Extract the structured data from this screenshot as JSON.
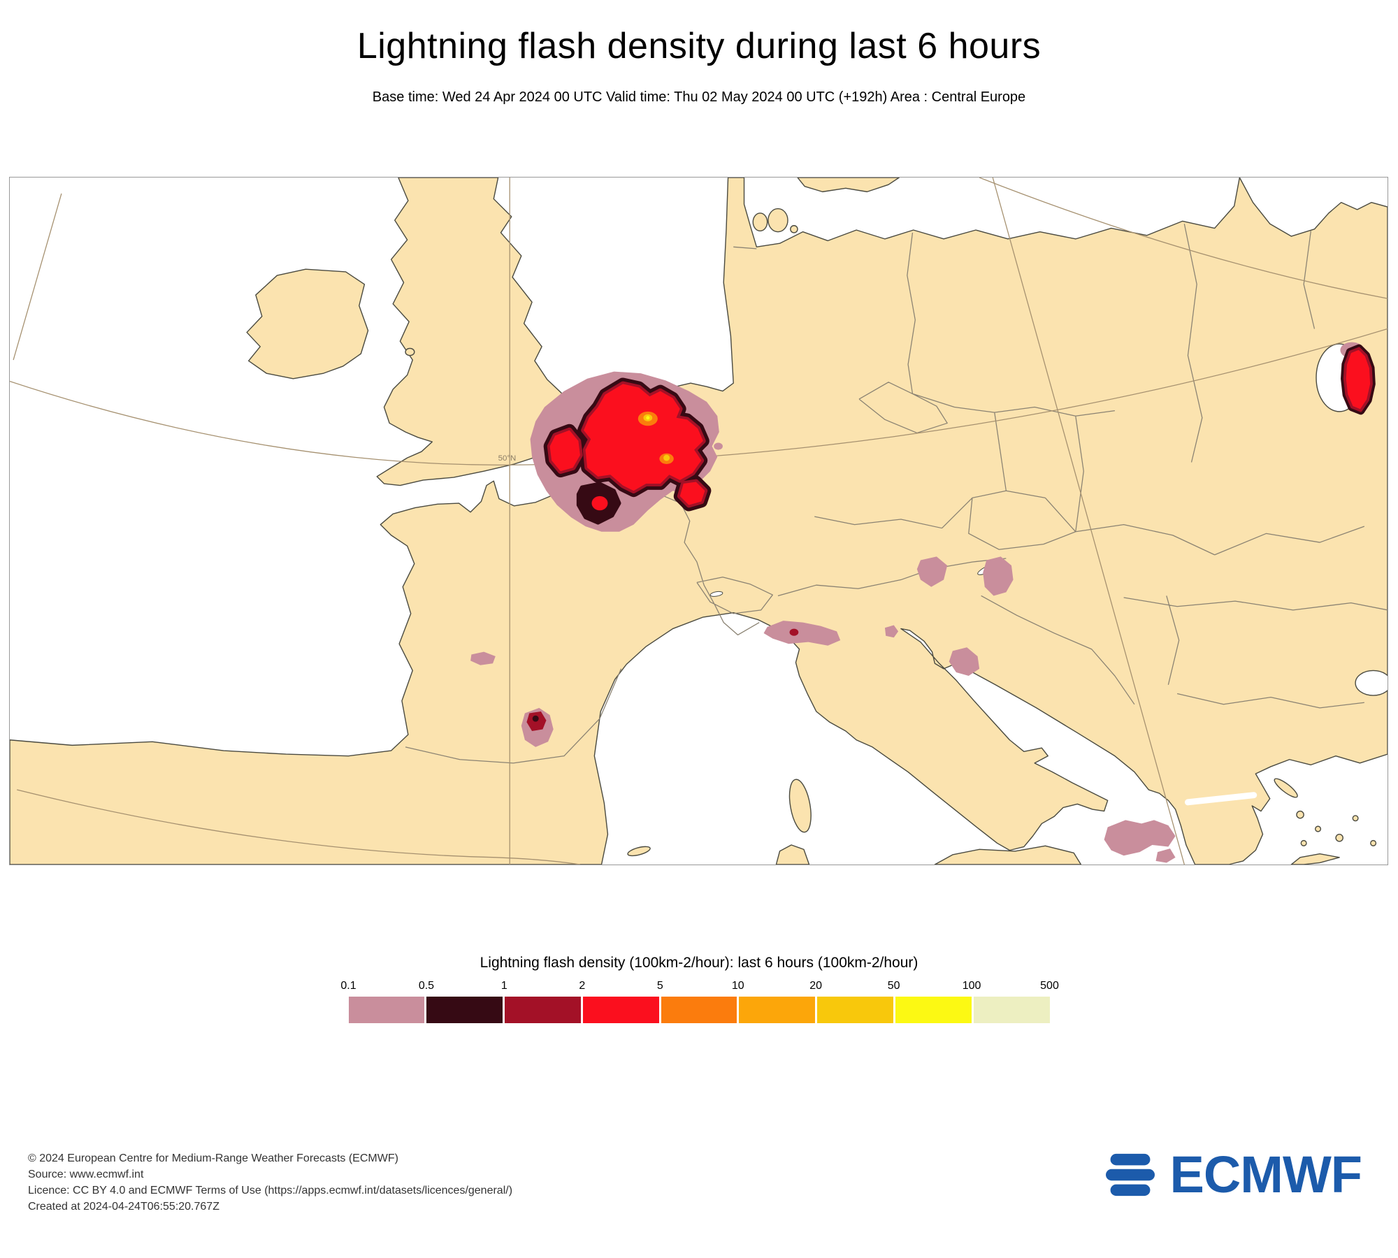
{
  "title": "Lightning flash density during last 6 hours",
  "subtitle": "Base time: Wed 24 Apr 2024 00 UTC Valid time: Thu 02 May 2024 00 UTC (+192h) Area : Central Europe",
  "map": {
    "parallel_label": "50°N",
    "land_color": "#FBE3AF",
    "sea_color": "#FFFFFF",
    "coast_color": "#4A4A40",
    "border_color": "#8A8272",
    "graticule_color": "#A5906F",
    "graticule_label_color": "#8B7D66",
    "frame_color": "#999999"
  },
  "legend": {
    "title": "Lightning flash density (100km-2/hour): last 6 hours (100km-2/hour)",
    "ticks": [
      "0.1",
      "0.5",
      "1",
      "2",
      "5",
      "10",
      "20",
      "50",
      "100",
      "500"
    ],
    "colors": [
      "#C98E9C",
      "#360A14",
      "#A31127",
      "#FB0F1E",
      "#FB7C0D",
      "#FCA60A",
      "#F8C80C",
      "#FCF913",
      "#EDEFC1"
    ]
  },
  "footer": {
    "lines": [
      "© 2024 European Centre for Medium-Range Weather Forecasts (ECMWF)",
      "Source: www.ecmwf.int",
      "Licence: CC BY 4.0 and ECMWF Terms of Use (https://apps.ecmwf.int/datasets/licences/general/)",
      "Created at 2024-04-24T06:55:20.767Z"
    ]
  },
  "logo": {
    "text": "ECMWF",
    "color": "#1C5BAB"
  }
}
